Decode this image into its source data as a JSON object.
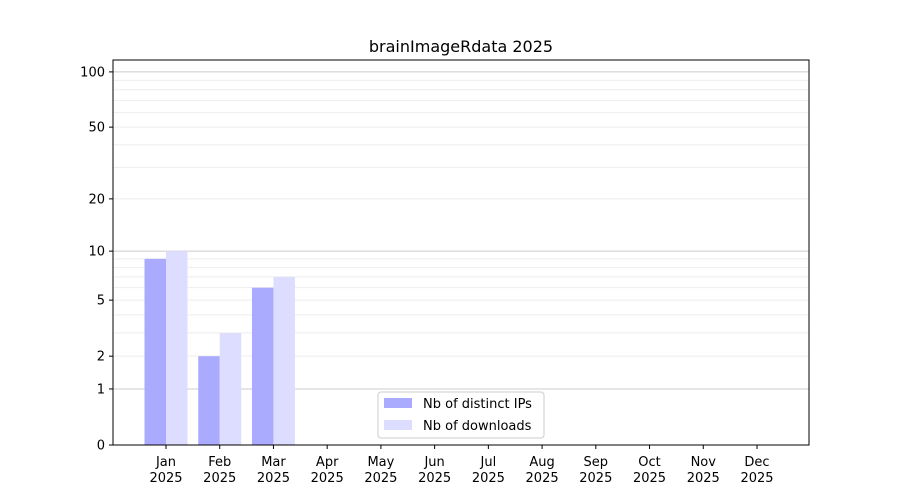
{
  "chart_data": {
    "type": "bar",
    "title": "brainImageRdata 2025",
    "xlabel": "",
    "ylabel": "",
    "yscale": "log10(1+y)",
    "ylim": [
      0,
      116
    ],
    "yticks": [
      0,
      1,
      2,
      5,
      10,
      20,
      50,
      100
    ],
    "grid": true,
    "legend_position": "bottom-center",
    "categories": [
      "Jan\n2025",
      "Feb\n2025",
      "Mar\n2025",
      "Apr\n2025",
      "May\n2025",
      "Jun\n2025",
      "Jul\n2025",
      "Aug\n2025",
      "Sep\n2025",
      "Oct\n2025",
      "Nov\n2025",
      "Dec\n2025"
    ],
    "series": [
      {
        "name": "Nb of distinct IPs",
        "color": "#aaaaff",
        "values": [
          9,
          2,
          6,
          0,
          0,
          0,
          0,
          0,
          0,
          0,
          0,
          0
        ]
      },
      {
        "name": "Nb of downloads",
        "color": "#ddddff",
        "values": [
          10,
          3,
          7,
          0,
          0,
          0,
          0,
          0,
          0,
          0,
          0,
          0
        ]
      }
    ]
  }
}
